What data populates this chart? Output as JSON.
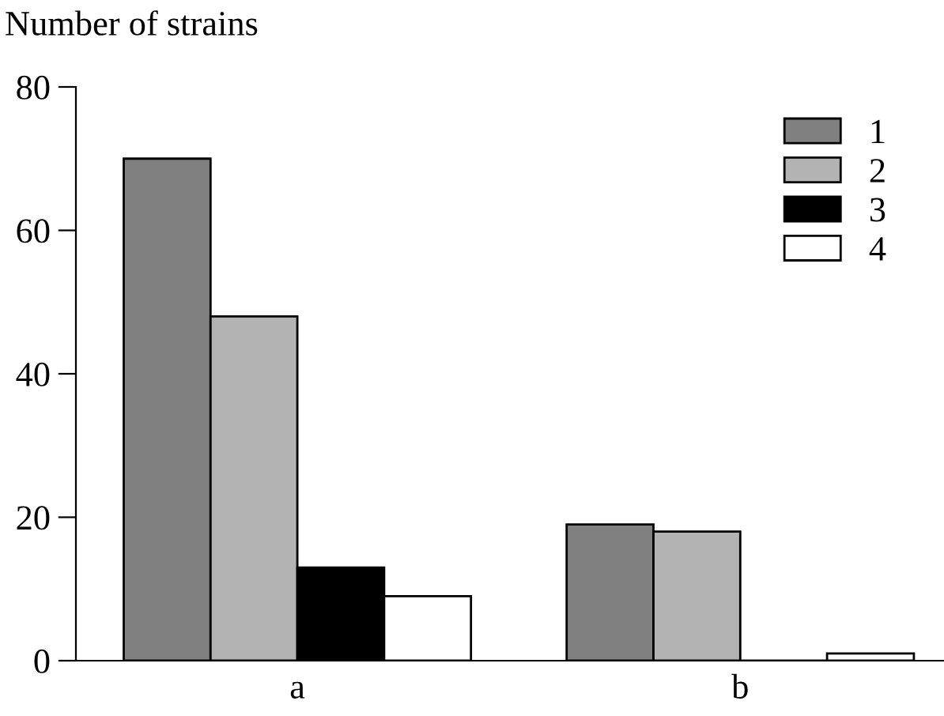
{
  "chart_data": {
    "type": "bar",
    "ylabel": "Number of strains",
    "categories": [
      "a",
      "b"
    ],
    "series": [
      {
        "name": "1",
        "color": "#808080",
        "values": [
          70,
          19
        ]
      },
      {
        "name": "2",
        "color": "#b3b3b3",
        "values": [
          48,
          18
        ]
      },
      {
        "name": "3",
        "color": "#000000",
        "values": [
          13,
          0
        ]
      },
      {
        "name": "4",
        "color": "#ffffff",
        "values": [
          9,
          1
        ]
      }
    ],
    "ylim": [
      0,
      80
    ],
    "yticks": [
      0,
      20,
      40,
      60,
      80
    ],
    "grid": false,
    "legend": "top right"
  }
}
